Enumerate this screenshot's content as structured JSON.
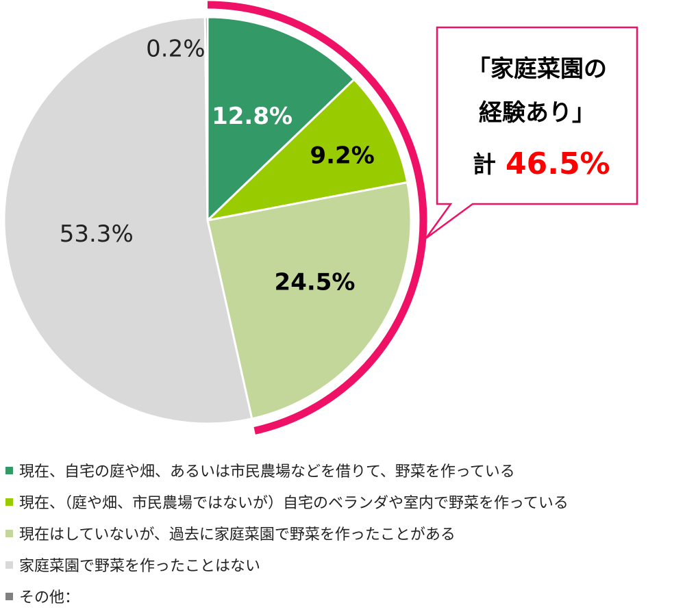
{
  "chart_data": {
    "type": "pie",
    "slices": [
      {
        "label": "現在、自宅の庭や畑、あるいは市民農場などを借りて、野菜を作っている",
        "value": 12.8,
        "display": "12.8%",
        "color": "#339966",
        "label_color": "#ffffff",
        "bold": true
      },
      {
        "label": "現在、（庭や畑、市民農場ではないが）自宅のベランダや室内で野菜を作っている",
        "value": 9.2,
        "display": "9.2%",
        "color": "#99cc00",
        "label_color": "#000000",
        "bold": true
      },
      {
        "label": "現在はしていないが、過去に家庭菜園で野菜を作ったことがある",
        "value": 24.5,
        "display": "24.5%",
        "color": "#c4d79b",
        "label_color": "#000000",
        "bold": true
      },
      {
        "label": "家庭菜園で野菜を作ったことはない",
        "value": 53.3,
        "display": "53.3%",
        "color": "#d9d9d9",
        "label_color": "#222222",
        "bold": false
      },
      {
        "label": "その他：",
        "value": 0.2,
        "display": "0.2%",
        "color": "#808080",
        "label_color": "#222222",
        "bold": false
      }
    ],
    "start_angle_deg": 0,
    "direction": "clockwise",
    "highlight": {
      "color": "#ee1166",
      "slices": [
        0,
        1,
        2
      ]
    },
    "legend_position": "bottom"
  },
  "callout": {
    "line1": "「家庭菜園の",
    "line2": "経験あり」",
    "prefix": "計",
    "value": "46.5%",
    "border_color": "#ee1166",
    "value_color": "#ff0000"
  }
}
